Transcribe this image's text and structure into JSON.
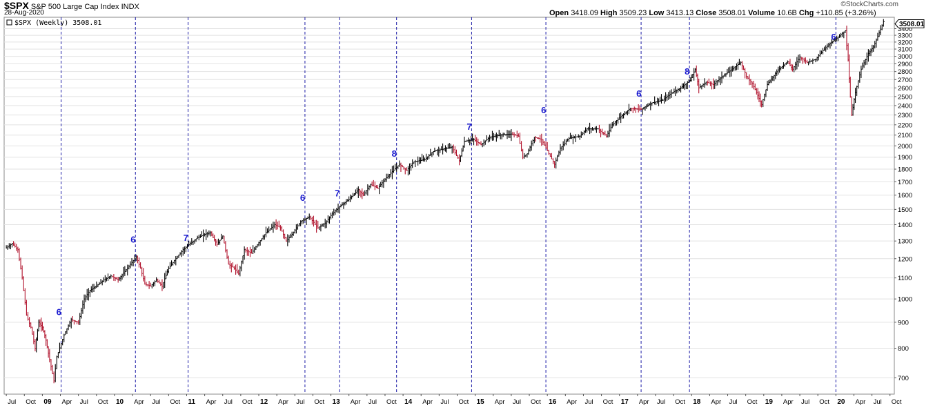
{
  "header": {
    "symbol": "$SPX",
    "name": "S&P 500 Large Cap Index",
    "exchange": "INDX",
    "date": "28-Aug-2020",
    "brand": "©StockCharts.com",
    "open_label": "Open",
    "open": "3418.09",
    "high_label": "High",
    "high": "3509.23",
    "low_label": "Low",
    "low": "3413.13",
    "close_label": "Close",
    "close": "3508.01",
    "volume_label": "Volume",
    "volume": "10.6B",
    "chg_label": "Chg",
    "chg": "+110.85 (+3.26%)"
  },
  "legend": {
    "text": "$SPX (Weekly) 3508.01"
  },
  "price_label": "3508.01",
  "colors": {
    "up": "#000000",
    "down": "#b0102a",
    "cycle_line": "#1a1aa6",
    "cycle_label": "#1a1ad0",
    "grid": "#e2e2e2"
  },
  "chart_data": {
    "type": "line",
    "scale": "log",
    "ylim": [
      650,
      3580
    ],
    "xlim": [
      "2008-07",
      "2020-10"
    ],
    "yticks": [
      700,
      800,
      900,
      1000,
      1100,
      1200,
      1300,
      1400,
      1500,
      1600,
      1700,
      1800,
      1900,
      2000,
      2100,
      2200,
      2300,
      2400,
      2500,
      2600,
      2700,
      2800,
      2900,
      3000,
      3100,
      3200,
      3300,
      3400
    ],
    "xticks": [
      {
        "t": 2008.5,
        "label": "Jul",
        "major": false
      },
      {
        "t": 2008.75,
        "label": "Oct",
        "major": false
      },
      {
        "t": 2009.0,
        "label": "09",
        "major": true
      },
      {
        "t": 2009.25,
        "label": "Apr",
        "major": false
      },
      {
        "t": 2009.5,
        "label": "Jul",
        "major": false
      },
      {
        "t": 2009.75,
        "label": "Oct",
        "major": false
      },
      {
        "t": 2010.0,
        "label": "10",
        "major": true
      },
      {
        "t": 2010.25,
        "label": "Apr",
        "major": false
      },
      {
        "t": 2010.5,
        "label": "Jul",
        "major": false
      },
      {
        "t": 2010.75,
        "label": "Oct",
        "major": false
      },
      {
        "t": 2011.0,
        "label": "11",
        "major": true
      },
      {
        "t": 2011.25,
        "label": "Apr",
        "major": false
      },
      {
        "t": 2011.5,
        "label": "Jul",
        "major": false
      },
      {
        "t": 2011.75,
        "label": "Oct",
        "major": false
      },
      {
        "t": 2012.0,
        "label": "12",
        "major": true
      },
      {
        "t": 2012.25,
        "label": "Apr",
        "major": false
      },
      {
        "t": 2012.5,
        "label": "Jul",
        "major": false
      },
      {
        "t": 2012.75,
        "label": "Oct",
        "major": false
      },
      {
        "t": 2013.0,
        "label": "13",
        "major": true
      },
      {
        "t": 2013.25,
        "label": "Apr",
        "major": false
      },
      {
        "t": 2013.5,
        "label": "Jul",
        "major": false
      },
      {
        "t": 2013.75,
        "label": "Oct",
        "major": false
      },
      {
        "t": 2014.0,
        "label": "14",
        "major": true
      },
      {
        "t": 2014.25,
        "label": "Apr",
        "major": false
      },
      {
        "t": 2014.5,
        "label": "Jul",
        "major": false
      },
      {
        "t": 2014.75,
        "label": "Oct",
        "major": false
      },
      {
        "t": 2015.0,
        "label": "15",
        "major": true
      },
      {
        "t": 2015.25,
        "label": "Apr",
        "major": false
      },
      {
        "t": 2015.5,
        "label": "Jul",
        "major": false
      },
      {
        "t": 2015.75,
        "label": "Oct",
        "major": false
      },
      {
        "t": 2016.0,
        "label": "16",
        "major": true
      },
      {
        "t": 2016.25,
        "label": "Apr",
        "major": false
      },
      {
        "t": 2016.5,
        "label": "Jul",
        "major": false
      },
      {
        "t": 2016.75,
        "label": "Oct",
        "major": false
      },
      {
        "t": 2017.0,
        "label": "17",
        "major": true
      },
      {
        "t": 2017.25,
        "label": "Apr",
        "major": false
      },
      {
        "t": 2017.5,
        "label": "Jul",
        "major": false
      },
      {
        "t": 2017.75,
        "label": "Oct",
        "major": false
      },
      {
        "t": 2018.0,
        "label": "18",
        "major": true
      },
      {
        "t": 2018.25,
        "label": "Apr",
        "major": false
      },
      {
        "t": 2018.5,
        "label": "Jul",
        "major": false
      },
      {
        "t": 2018.75,
        "label": "Oct",
        "major": false
      },
      {
        "t": 2019.0,
        "label": "19",
        "major": true
      },
      {
        "t": 2019.25,
        "label": "Apr",
        "major": false
      },
      {
        "t": 2019.5,
        "label": "Jul",
        "major": false
      },
      {
        "t": 2019.75,
        "label": "Oct",
        "major": false
      },
      {
        "t": 2020.0,
        "label": "20",
        "major": true
      },
      {
        "t": 2020.25,
        "label": "Apr",
        "major": false
      },
      {
        "t": 2020.5,
        "label": "Jul",
        "major": false
      },
      {
        "t": 2020.75,
        "label": "Oct",
        "major": false
      }
    ],
    "series": [
      {
        "values": [
          [
            2008.5,
            1260
          ],
          [
            2008.58,
            1285
          ],
          [
            2008.66,
            1250
          ],
          [
            2008.72,
            1100
          ],
          [
            2008.78,
            930
          ],
          [
            2008.84,
            880
          ],
          [
            2008.9,
            800
          ],
          [
            2008.95,
            900
          ],
          [
            2009.0,
            880
          ],
          [
            2009.05,
            830
          ],
          [
            2009.1,
            760
          ],
          [
            2009.16,
            690
          ],
          [
            2009.2,
            770
          ],
          [
            2009.3,
            850
          ],
          [
            2009.4,
            910
          ],
          [
            2009.5,
            900
          ],
          [
            2009.58,
            1000
          ],
          [
            2009.66,
            1040
          ],
          [
            2009.75,
            1060
          ],
          [
            2009.85,
            1090
          ],
          [
            2009.95,
            1110
          ],
          [
            2010.05,
            1090
          ],
          [
            2010.18,
            1150
          ],
          [
            2010.3,
            1210
          ],
          [
            2010.36,
            1150
          ],
          [
            2010.42,
            1070
          ],
          [
            2010.5,
            1060
          ],
          [
            2010.58,
            1090
          ],
          [
            2010.66,
            1060
          ],
          [
            2010.75,
            1150
          ],
          [
            2010.85,
            1200
          ],
          [
            2010.95,
            1250
          ],
          [
            2011.05,
            1285
          ],
          [
            2011.15,
            1320
          ],
          [
            2011.25,
            1340
          ],
          [
            2011.33,
            1350
          ],
          [
            2011.42,
            1280
          ],
          [
            2011.5,
            1330
          ],
          [
            2011.58,
            1170
          ],
          [
            2011.66,
            1150
          ],
          [
            2011.72,
            1120
          ],
          [
            2011.8,
            1250
          ],
          [
            2011.9,
            1230
          ],
          [
            2012.0,
            1290
          ],
          [
            2012.1,
            1350
          ],
          [
            2012.22,
            1400
          ],
          [
            2012.3,
            1380
          ],
          [
            2012.38,
            1300
          ],
          [
            2012.46,
            1340
          ],
          [
            2012.58,
            1420
          ],
          [
            2012.7,
            1450
          ],
          [
            2012.82,
            1380
          ],
          [
            2012.92,
            1410
          ],
          [
            2013.0,
            1460
          ],
          [
            2013.12,
            1520
          ],
          [
            2013.25,
            1570
          ],
          [
            2013.38,
            1640
          ],
          [
            2013.45,
            1600
          ],
          [
            2013.55,
            1680
          ],
          [
            2013.65,
            1650
          ],
          [
            2013.75,
            1720
          ],
          [
            2013.85,
            1780
          ],
          [
            2013.95,
            1840
          ],
          [
            2014.05,
            1790
          ],
          [
            2014.15,
            1860
          ],
          [
            2014.3,
            1880
          ],
          [
            2014.42,
            1950
          ],
          [
            2014.55,
            1970
          ],
          [
            2014.68,
            1990
          ],
          [
            2014.78,
            1870
          ],
          [
            2014.85,
            2040
          ],
          [
            2014.98,
            2060
          ],
          [
            2015.08,
            2010
          ],
          [
            2015.2,
            2080
          ],
          [
            2015.35,
            2100
          ],
          [
            2015.5,
            2110
          ],
          [
            2015.6,
            2090
          ],
          [
            2015.66,
            1900
          ],
          [
            2015.72,
            1930
          ],
          [
            2015.82,
            2080
          ],
          [
            2015.92,
            2060
          ],
          [
            2016.02,
            1930
          ],
          [
            2016.1,
            1840
          ],
          [
            2016.18,
            1980
          ],
          [
            2016.3,
            2070
          ],
          [
            2016.45,
            2090
          ],
          [
            2016.55,
            2160
          ],
          [
            2016.7,
            2160
          ],
          [
            2016.82,
            2090
          ],
          [
            2016.9,
            2200
          ],
          [
            2017.0,
            2270
          ],
          [
            2017.15,
            2370
          ],
          [
            2017.3,
            2360
          ],
          [
            2017.45,
            2430
          ],
          [
            2017.6,
            2460
          ],
          [
            2017.72,
            2540
          ],
          [
            2017.85,
            2600
          ],
          [
            2017.98,
            2690
          ],
          [
            2018.05,
            2830
          ],
          [
            2018.1,
            2600
          ],
          [
            2018.2,
            2670
          ],
          [
            2018.3,
            2640
          ],
          [
            2018.4,
            2720
          ],
          [
            2018.55,
            2820
          ],
          [
            2018.68,
            2920
          ],
          [
            2018.76,
            2740
          ],
          [
            2018.84,
            2650
          ],
          [
            2018.9,
            2550
          ],
          [
            2018.97,
            2410
          ],
          [
            2019.05,
            2640
          ],
          [
            2019.2,
            2820
          ],
          [
            2019.33,
            2930
          ],
          [
            2019.4,
            2830
          ],
          [
            2019.5,
            2990
          ],
          [
            2019.6,
            2920
          ],
          [
            2019.72,
            2960
          ],
          [
            2019.82,
            3080
          ],
          [
            2019.92,
            3180
          ],
          [
            2020.05,
            3290
          ],
          [
            2020.13,
            3370
          ],
          [
            2020.17,
            2950
          ],
          [
            2020.2,
            2500
          ],
          [
            2020.22,
            2300
          ],
          [
            2020.27,
            2550
          ],
          [
            2020.35,
            2830
          ],
          [
            2020.45,
            3040
          ],
          [
            2020.52,
            3130
          ],
          [
            2020.58,
            3280
          ],
          [
            2020.66,
            3508
          ]
        ]
      }
    ],
    "cycle_markers": [
      {
        "t": 2009.26,
        "label": "6",
        "y": 930
      },
      {
        "t": 2010.29,
        "label": "6",
        "y": 1290
      },
      {
        "t": 2011.02,
        "label": "7",
        "y": 1300
      },
      {
        "t": 2012.64,
        "label": "6",
        "y": 1560
      },
      {
        "t": 2013.12,
        "label": "7",
        "y": 1590
      },
      {
        "t": 2013.91,
        "label": "8",
        "y": 1905
      },
      {
        "t": 2014.95,
        "label": "7",
        "y": 2150
      },
      {
        "t": 2015.98,
        "label": "6",
        "y": 2320
      },
      {
        "t": 2017.3,
        "label": "6",
        "y": 2500
      },
      {
        "t": 2017.97,
        "label": "8",
        "y": 2760
      },
      {
        "t": 2020.0,
        "label": "6",
        "y": 3230
      }
    ]
  }
}
